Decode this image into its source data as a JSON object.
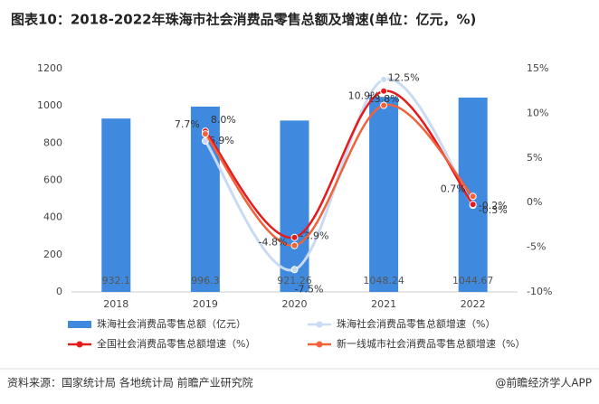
{
  "chart_data": {
    "type": "bar-line",
    "title": "图表10：2018-2022年珠海市社会消费品零售总额及增速(单位：亿元，%)",
    "categories": [
      "2018",
      "2019",
      "2020",
      "2021",
      "2022"
    ],
    "series": [
      {
        "name": "珠海社会消费品零售总额（亿元）",
        "type": "bar",
        "color": "#3f8ade",
        "values": [
          932.1,
          996.3,
          921.26,
          1048.24,
          1044.67
        ]
      },
      {
        "name": "珠海社会消费品零售总额增速（%）",
        "type": "line",
        "axis": "y2",
        "color": "#c8dbf2",
        "values": [
          null,
          6.9,
          -7.5,
          13.8,
          -0.3
        ],
        "value_labels": [
          null,
          "6.9%",
          "-7.5%",
          "13.8%",
          "-0.3%"
        ]
      },
      {
        "name": "全国社会消费品零售总额增速（%）",
        "type": "line",
        "axis": "y2",
        "color": "#e41a1c",
        "values": [
          null,
          8.0,
          -3.9,
          12.5,
          -0.2
        ],
        "value_labels": [
          null,
          "8.0%",
          "-3.9%",
          "12.5%",
          "-0.2%"
        ]
      },
      {
        "name": "新一线城市社会消费品零售总额增速（%）",
        "type": "line",
        "axis": "y2",
        "color": "#f0623c",
        "values": [
          null,
          7.7,
          -4.8,
          10.9,
          0.7
        ],
        "value_labels": [
          null,
          "7.7%",
          "-4.8%",
          "10.9%",
          "0.7%"
        ]
      }
    ],
    "ylim": [
      0,
      1200
    ],
    "yticks": [
      0,
      200,
      400,
      600,
      800,
      1000,
      1200
    ],
    "y2lim": [
      -10,
      15
    ],
    "y2ticks": [
      {
        "value": -10,
        "label": "-10%"
      },
      {
        "value": -5,
        "label": "-5%"
      },
      {
        "value": 0,
        "label": "0%"
      },
      {
        "value": 5,
        "label": "5%"
      },
      {
        "value": 10,
        "label": "10%"
      },
      {
        "value": 15,
        "label": "15%"
      }
    ],
    "source": "资料来源：国家统计局 各地统计局 前瞻产业研究院",
    "brand": "@前瞻经济学人APP"
  }
}
